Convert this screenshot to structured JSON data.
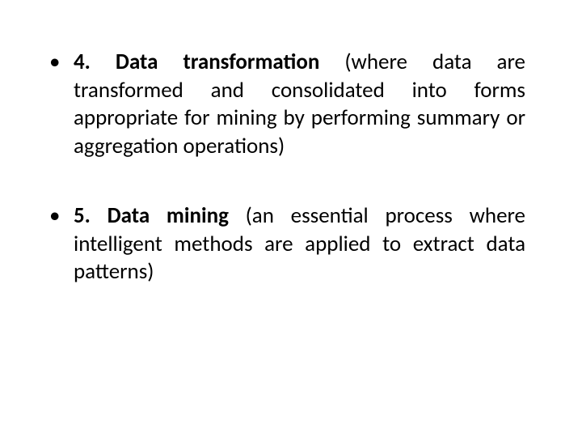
{
  "slide": {
    "background_color": "#ffffff",
    "text_color": "#000000",
    "font_family": "Calibri",
    "font_size_pt": 27,
    "bullets": [
      {
        "lead": "4. Data transformation",
        "rest": " (where data are transformed and consolidated into forms appropriate for mining by performing summary or aggregation operations)"
      },
      {
        "lead": "5. Data mining",
        "rest": " (an essential process where intelligent methods are applied to extract data patterns)"
      }
    ]
  }
}
